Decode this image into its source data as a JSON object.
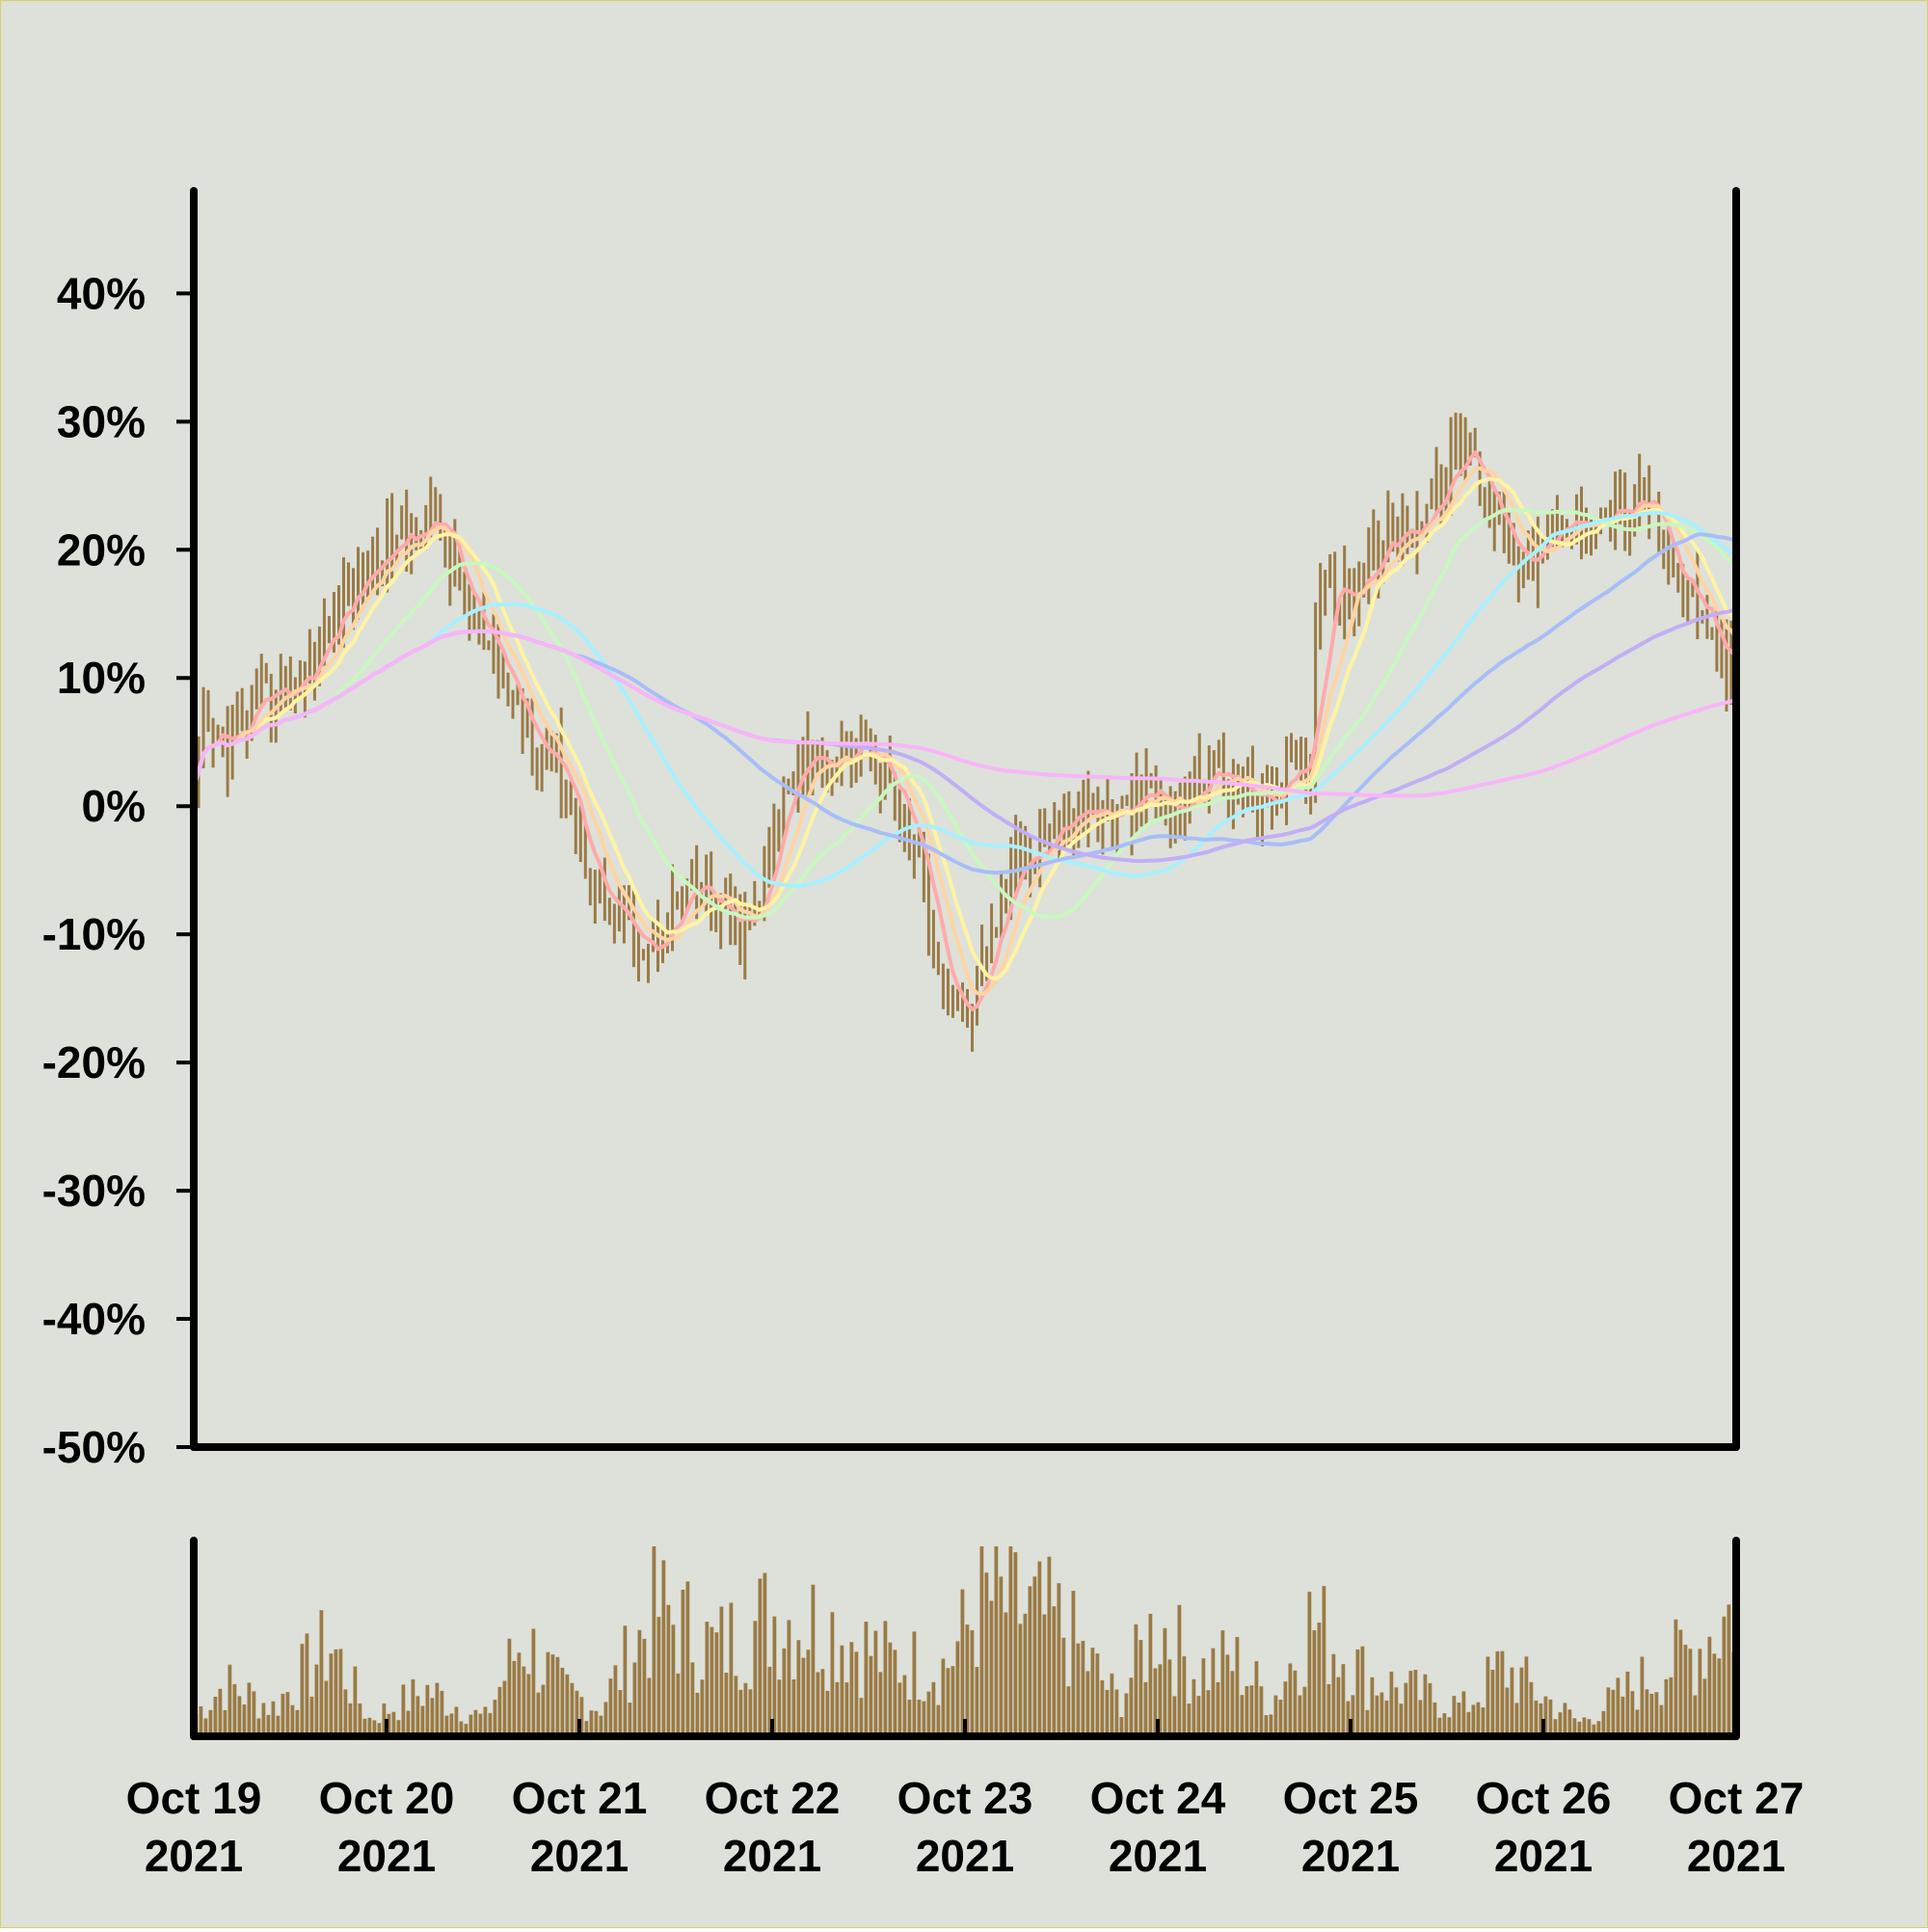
{
  "colors": {
    "background": "#dde1da",
    "border": "#d8cf6a",
    "axis": "#000000",
    "bars": "#9a7a45",
    "volume": "#9a7a45"
  },
  "chart_data": {
    "type": "ohlc",
    "title": "",
    "xlabel": "",
    "ylabel": "",
    "y_format": "percent",
    "ylim": [
      -50,
      48
    ],
    "yticks": [
      40,
      30,
      20,
      10,
      0,
      -10,
      -20,
      -30,
      -40,
      -50
    ],
    "ytick_labels": [
      "40%",
      "30%",
      "20%",
      "10%",
      "0%",
      "-10%",
      "-20%",
      "-30%",
      "-40%",
      "-50%"
    ],
    "xlim": [
      0,
      8
    ],
    "x_unit": "days since Oct 19 2021",
    "xtick_labels": [
      [
        "Oct 19",
        "2021"
      ],
      [
        "Oct 20",
        "2021"
      ],
      [
        "Oct 21",
        "2021"
      ],
      [
        "Oct 22",
        "2021"
      ],
      [
        "Oct 23",
        "2021"
      ],
      [
        "Oct 24",
        "2021"
      ],
      [
        "Oct 25",
        "2021"
      ],
      [
        "Oct 26",
        "2021"
      ],
      [
        "Oct 27",
        "2021"
      ]
    ],
    "grid": false,
    "legend": "none",
    "price_anchors": [
      [
        0.0,
        0
      ],
      [
        0.05,
        5
      ],
      [
        0.2,
        5
      ],
      [
        0.35,
        8
      ],
      [
        0.55,
        10
      ],
      [
        0.75,
        15
      ],
      [
        0.9,
        19
      ],
      [
        1.1,
        21
      ],
      [
        1.25,
        23
      ],
      [
        1.4,
        16
      ],
      [
        1.55,
        11
      ],
      [
        1.75,
        6
      ],
      [
        1.9,
        3
      ],
      [
        2.05,
        -5
      ],
      [
        2.2,
        -9
      ],
      [
        2.35,
        -11
      ],
      [
        2.55,
        -7
      ],
      [
        2.65,
        -7
      ],
      [
        2.75,
        -9
      ],
      [
        2.85,
        -10
      ],
      [
        2.95,
        -7
      ],
      [
        3.05,
        1
      ],
      [
        3.15,
        5
      ],
      [
        3.3,
        3
      ],
      [
        3.45,
        5
      ],
      [
        3.6,
        2
      ],
      [
        3.75,
        -4
      ],
      [
        3.9,
        -14
      ],
      [
        4.0,
        -17
      ],
      [
        4.12,
        -12
      ],
      [
        4.25,
        -4
      ],
      [
        4.45,
        -2
      ],
      [
        4.6,
        0
      ],
      [
        4.8,
        -1
      ],
      [
        4.95,
        1
      ],
      [
        5.1,
        -1
      ],
      [
        5.25,
        3
      ],
      [
        5.4,
        2
      ],
      [
        5.55,
        0
      ],
      [
        5.7,
        3
      ],
      [
        5.8,
        1
      ],
      [
        5.82,
        18
      ],
      [
        6.0,
        17
      ],
      [
        6.2,
        21
      ],
      [
        6.4,
        23
      ],
      [
        6.55,
        27
      ],
      [
        6.6,
        28
      ],
      [
        6.75,
        23
      ],
      [
        6.9,
        19
      ],
      [
        7.0,
        20
      ],
      [
        7.2,
        23
      ],
      [
        7.4,
        23
      ],
      [
        7.55,
        24
      ],
      [
        7.65,
        18
      ],
      [
        7.8,
        15
      ],
      [
        8.0,
        10
      ]
    ],
    "volume_envelope": [
      [
        0.0,
        20
      ],
      [
        0.15,
        45
      ],
      [
        0.4,
        25
      ],
      [
        0.7,
        80
      ],
      [
        0.9,
        15
      ],
      [
        1.2,
        40
      ],
      [
        1.5,
        15
      ],
      [
        1.7,
        85
      ],
      [
        1.9,
        40
      ],
      [
        2.1,
        25
      ],
      [
        2.4,
        110
      ],
      [
        2.7,
        75
      ],
      [
        3.0,
        105
      ],
      [
        3.3,
        95
      ],
      [
        3.6,
        65
      ],
      [
        3.9,
        60
      ],
      [
        4.1,
        120
      ],
      [
        4.5,
        95
      ],
      [
        4.8,
        30
      ],
      [
        5.0,
        100
      ],
      [
        5.2,
        55
      ],
      [
        5.4,
        65
      ],
      [
        5.6,
        30
      ],
      [
        5.8,
        100
      ],
      [
        6.1,
        50
      ],
      [
        6.4,
        35
      ],
      [
        6.6,
        25
      ],
      [
        6.8,
        60
      ],
      [
        7.0,
        35
      ],
      [
        7.2,
        12
      ],
      [
        7.5,
        45
      ],
      [
        7.8,
        75
      ],
      [
        8.0,
        110
      ]
    ],
    "moving_average_colors": [
      "#ffaaaa",
      "#ffd4a3",
      "#fff3a3",
      "#c9f7c0",
      "#a9f0ff",
      "#a9bdf7",
      "#c2aef5",
      "#f8b5f8"
    ],
    "moving_average_windows": [
      6,
      10,
      14,
      30,
      50,
      80,
      120,
      200
    ]
  }
}
